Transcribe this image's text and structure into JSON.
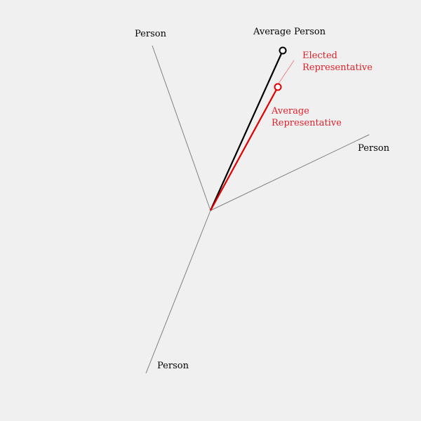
{
  "labels": {
    "person_top": "Person",
    "person_right": "Person",
    "person_bottom": "Person",
    "average_person": "Average Person",
    "elected_line1": "Elected",
    "elected_line2": "Representative",
    "average_rep_line1": "Average",
    "average_rep_line2": "Representative"
  },
  "colors": {
    "background": "#f0f0f0",
    "person_axis": "#808080",
    "average_person": "#000000",
    "representative": "#e00000",
    "representative_label": "#e0202a",
    "connector": "#f08080"
  }
}
